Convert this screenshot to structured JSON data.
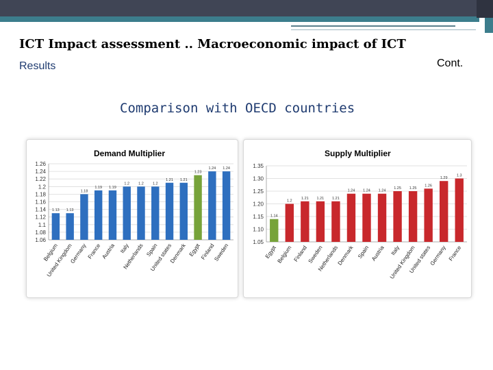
{
  "header": {
    "title": "ICT Impact assessment .. Macroeconomic impact of ICT",
    "section": "Results",
    "cont": "Cont.",
    "subtitle": "Comparison with OECD countries"
  },
  "colors": {
    "blue": "#2e6fbf",
    "green": "#77a33a",
    "red": "#c8282c"
  },
  "chart_data": [
    {
      "type": "bar",
      "title": "Demand Multiplier",
      "categories": [
        "Belgium",
        "United Kingdom",
        "Germany",
        "France",
        "Austria",
        "Italy",
        "Netherlands",
        "Spain",
        "United states",
        "Denmark",
        "Egypt",
        "Finland",
        "Sweden"
      ],
      "values": [
        1.13,
        1.13,
        1.18,
        1.19,
        1.19,
        1.2,
        1.2,
        1.2,
        1.21,
        1.21,
        1.23,
        1.24,
        1.24
      ],
      "data_labels": [
        "1.13",
        "1.13",
        "1.18",
        "1.19",
        "1.19",
        "1.2",
        "1.2",
        "1.2",
        "1.21",
        "1.21",
        "1.23",
        "1.24",
        "1.24"
      ],
      "highlight": "Egypt",
      "ylim": [
        1.06,
        1.26
      ],
      "yticks": [
        "1.26",
        "1.24",
        "1.22",
        "1.2",
        "1.18",
        "1.16",
        "1.14",
        "1.12",
        "1.1",
        "1.08",
        "1.06"
      ],
      "grid": true
    },
    {
      "type": "bar",
      "title": "Supply Multiplier",
      "categories": [
        "Egypt",
        "Belgium",
        "Finland",
        "Sweden",
        "Netherlands",
        "Denmark",
        "Spain",
        "Austria",
        "Italy",
        "United Kingdom",
        "United states",
        "Germany",
        "France"
      ],
      "values": [
        1.14,
        1.2,
        1.21,
        1.21,
        1.21,
        1.24,
        1.24,
        1.24,
        1.25,
        1.25,
        1.26,
        1.29,
        1.3
      ],
      "data_labels": [
        "1.14",
        "1.2",
        "1.21",
        "1.21",
        "1.21",
        "1.24",
        "1.24",
        "1.24",
        "1.25",
        "1.25",
        "1.26",
        "1.29",
        "1.3"
      ],
      "highlight": "Egypt",
      "ylim": [
        1.05,
        1.35
      ],
      "yticks": [
        "1.35",
        "1.30",
        "1.25",
        "1.20",
        "1.15",
        "1.10",
        "1.05"
      ],
      "grid": true
    }
  ]
}
